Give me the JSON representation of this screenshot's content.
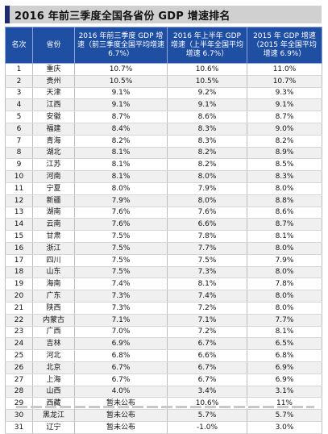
{
  "title": "2016 年前三季度全国各省份 GDP 增速排名",
  "headers": {
    "rank": "名次",
    "province": "省份",
    "q3_2016": "2016 年前三季度 GDP 增速（前三季度全国平均增速 6.7%）",
    "h1_2016": "2016 年上半年 GDP 增速（上半年全国平均增速 6.7%）",
    "y2015": "2015 年 GDP 增速（2015 年全国平均增速 6.9%）"
  },
  "rows": [
    {
      "rank": "1",
      "province": "重庆",
      "q3_2016": "10.7%",
      "h1_2016": "10.6%",
      "y2015": "11.0%"
    },
    {
      "rank": "2",
      "province": "贵州",
      "q3_2016": "10.5%",
      "h1_2016": "10.5%",
      "y2015": "10.7%"
    },
    {
      "rank": "3",
      "province": "天津",
      "q3_2016": "9.1%",
      "h1_2016": "9.2%",
      "y2015": "9.3%"
    },
    {
      "rank": "4",
      "province": "江西",
      "q3_2016": "9.1%",
      "h1_2016": "9.1%",
      "y2015": "9.1%"
    },
    {
      "rank": "5",
      "province": "安徽",
      "q3_2016": "8.7%",
      "h1_2016": "8.6%",
      "y2015": "8.7%"
    },
    {
      "rank": "6",
      "province": "福建",
      "q3_2016": "8.4%",
      "h1_2016": "8.3%",
      "y2015": "9.0%"
    },
    {
      "rank": "7",
      "province": "青海",
      "q3_2016": "8.2%",
      "h1_2016": "8.3%",
      "y2015": "8.2%"
    },
    {
      "rank": "8",
      "province": "湖北",
      "q3_2016": "8.1%",
      "h1_2016": "8.2%",
      "y2015": "8.9%"
    },
    {
      "rank": "9",
      "province": "江苏",
      "q3_2016": "8.1%",
      "h1_2016": "8.2%",
      "y2015": "8.5%"
    },
    {
      "rank": "10",
      "province": "河南",
      "q3_2016": "8.1%",
      "h1_2016": "8.0%",
      "y2015": "8.3%"
    },
    {
      "rank": "11",
      "province": "宁夏",
      "q3_2016": "8.0%",
      "h1_2016": "7.9%",
      "y2015": "8.0%"
    },
    {
      "rank": "12",
      "province": "新疆",
      "q3_2016": "7.9%",
      "h1_2016": "8.0%",
      "y2015": "8.8%"
    },
    {
      "rank": "13",
      "province": "湖南",
      "q3_2016": "7.6%",
      "h1_2016": "7.6%",
      "y2015": "8.6%"
    },
    {
      "rank": "14",
      "province": "云南",
      "q3_2016": "7.6%",
      "h1_2016": "6.6%",
      "y2015": "8.7%"
    },
    {
      "rank": "15",
      "province": "甘肃",
      "q3_2016": "7.5%",
      "h1_2016": "7.8%",
      "y2015": "8.1%"
    },
    {
      "rank": "16",
      "province": "浙江",
      "q3_2016": "7.5%",
      "h1_2016": "7.7%",
      "y2015": "8.0%"
    },
    {
      "rank": "17",
      "province": "四川",
      "q3_2016": "7.5%",
      "h1_2016": "7.5%",
      "y2015": "7.9%"
    },
    {
      "rank": "18",
      "province": "山东",
      "q3_2016": "7.5%",
      "h1_2016": "7.3%",
      "y2015": "8.0%"
    },
    {
      "rank": "19",
      "province": "海南",
      "q3_2016": "7.4%",
      "h1_2016": "8.1%",
      "y2015": "7.8%"
    },
    {
      "rank": "20",
      "province": "广东",
      "q3_2016": "7.3%",
      "h1_2016": "7.4%",
      "y2015": "8.0%"
    },
    {
      "rank": "21",
      "province": "陕西",
      "q3_2016": "7.3%",
      "h1_2016": "7.2%",
      "y2015": "8.0%"
    },
    {
      "rank": "22",
      "province": "内蒙古",
      "q3_2016": "7.1%",
      "h1_2016": "7.1%",
      "y2015": "7.7%"
    },
    {
      "rank": "23",
      "province": "广西",
      "q3_2016": "7.0%",
      "h1_2016": "7.2%",
      "y2015": "8.1%"
    },
    {
      "rank": "24",
      "province": "吉林",
      "q3_2016": "6.9%",
      "h1_2016": "6.7%",
      "y2015": "6.5%"
    },
    {
      "rank": "25",
      "province": "河北",
      "q3_2016": "6.8%",
      "h1_2016": "6.6%",
      "y2015": "6.8%"
    },
    {
      "rank": "26",
      "province": "北京",
      "q3_2016": "6.7%",
      "h1_2016": "6.7%",
      "y2015": "6.9%"
    },
    {
      "rank": "27",
      "province": "上海",
      "q3_2016": "6.7%",
      "h1_2016": "6.7%",
      "y2015": "6.9%"
    },
    {
      "rank": "28",
      "province": "山西",
      "q3_2016": "4.0%",
      "h1_2016": "3.4%",
      "y2015": "3.1%"
    },
    {
      "rank": "29",
      "province": "西藏",
      "q3_2016": "暂未公布",
      "h1_2016": "10.6%",
      "y2015": "11%"
    },
    {
      "rank": "30",
      "province": "黑龙江",
      "q3_2016": "暂未公布",
      "h1_2016": "5.7%",
      "y2015": "5.7%"
    },
    {
      "rank": "31",
      "province": "辽宁",
      "q3_2016": "暂未公布",
      "h1_2016": "-1.0%",
      "y2015": "3.0%"
    }
  ]
}
